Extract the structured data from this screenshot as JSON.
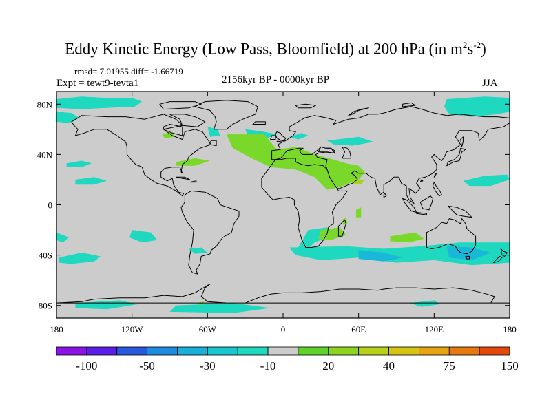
{
  "title": {
    "main": "Eddy Kinetic Energy (Low Pass, Bloomfield) at 200 hPa (in m",
    "sup1": "2",
    "mid": "s",
    "sup2": "-2",
    "close": ")"
  },
  "stats": "rmsd= 7.01955 diff= -1.66719",
  "expt": "Expt = tewt9-tevta1",
  "period": "2156kyr BP - 0000kyr BP",
  "season": "JJA",
  "axes": {
    "x_ticks": [
      {
        "lon": -180,
        "label": "180"
      },
      {
        "lon": -120,
        "label": "120W"
      },
      {
        "lon": -60,
        "label": "60W"
      },
      {
        "lon": 0,
        "label": "0"
      },
      {
        "lon": 60,
        "label": "60E"
      },
      {
        "lon": 120,
        "label": "120E"
      },
      {
        "lon": 180,
        "label": "180"
      }
    ],
    "y_ticks": [
      {
        "lat": 80,
        "label": "80N"
      },
      {
        "lat": 40,
        "label": "40N"
      },
      {
        "lat": 0,
        "label": "0"
      },
      {
        "lat": -40,
        "label": "40S"
      },
      {
        "lat": -80,
        "label": "80S"
      }
    ],
    "lon_range": [
      -180,
      180
    ],
    "lat_range": [
      -90,
      90
    ]
  },
  "colors": {
    "background": "#cccccc",
    "negative_fill": "#1ed8c0",
    "negative_strong_fill": "#19b8d8",
    "positive_fill": "#7ad82a",
    "positive_strong_fill": "#a8d020",
    "coastline": "#000000"
  },
  "colorbar": {
    "colors": [
      "#8a14e6",
      "#5a1ee8",
      "#2858e0",
      "#1c8ce0",
      "#18b0d8",
      "#18c6d0",
      "#1ed8c0",
      "#cccccc",
      "#5fd428",
      "#8ed41e",
      "#b8d018",
      "#d6c414",
      "#e6a412",
      "#e67810",
      "#e6480c"
    ],
    "labels": [
      {
        "index": 1,
        "label": "-100"
      },
      {
        "index": 3,
        "label": "-50"
      },
      {
        "index": 5,
        "label": "-30"
      },
      {
        "index": 7,
        "label": "-10"
      },
      {
        "index": 9,
        "label": "20"
      },
      {
        "index": 11,
        "label": "40"
      },
      {
        "index": 13,
        "label": "75"
      },
      {
        "index": 15,
        "label": "150"
      }
    ]
  }
}
